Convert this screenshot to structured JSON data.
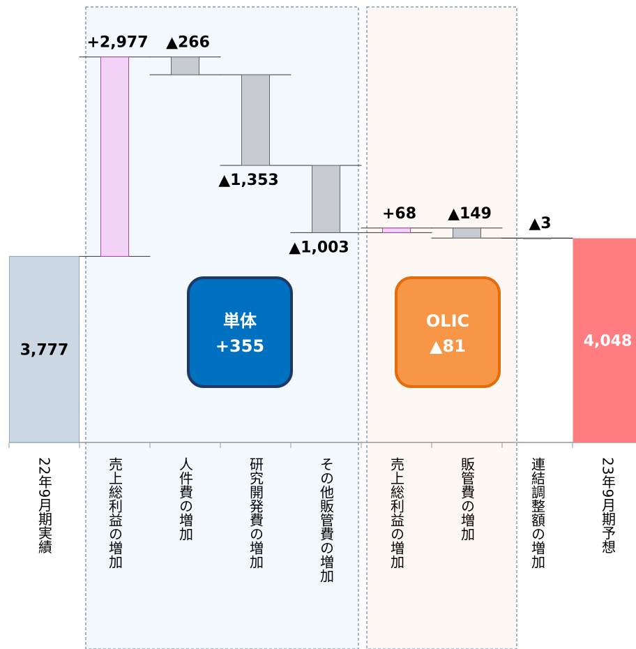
{
  "chart_data": {
    "type": "waterfall",
    "categories": [
      "22年9月期実績",
      "売上総利益の増加",
      "人件費の増加",
      "研究開発費の増加",
      "その他販管費の増加",
      "売上総利益の増加",
      "販管費の増加",
      "連結調整額の増加",
      "23年9月期予想"
    ],
    "values": [
      3777,
      2977,
      -266,
      -1353,
      -1003,
      68,
      -149,
      -3,
      4048
    ],
    "value_labels": [
      "3,777",
      "+2,977",
      "▲266",
      "▲1,353",
      "▲1,003",
      "+68",
      "▲149",
      "▲3",
      "4,048"
    ],
    "totals": [
      true,
      false,
      false,
      false,
      false,
      false,
      false,
      false,
      true
    ],
    "ylim": [
      1000,
      7500
    ],
    "start_color": "#ccd7e4",
    "end_color": "#ff7c80",
    "increase_color": "#f3d2f8",
    "decrease_color": "#c7cbcf",
    "groups": [
      {
        "name": "単体",
        "value": 355,
        "value_label": "+355",
        "color": "#0070c0",
        "area_color": "#f3f8fc"
      },
      {
        "name": "OLIC",
        "value": -81,
        "value_label": "▲81",
        "color": "#f79646",
        "area_color": "#fdf8f3"
      }
    ]
  }
}
